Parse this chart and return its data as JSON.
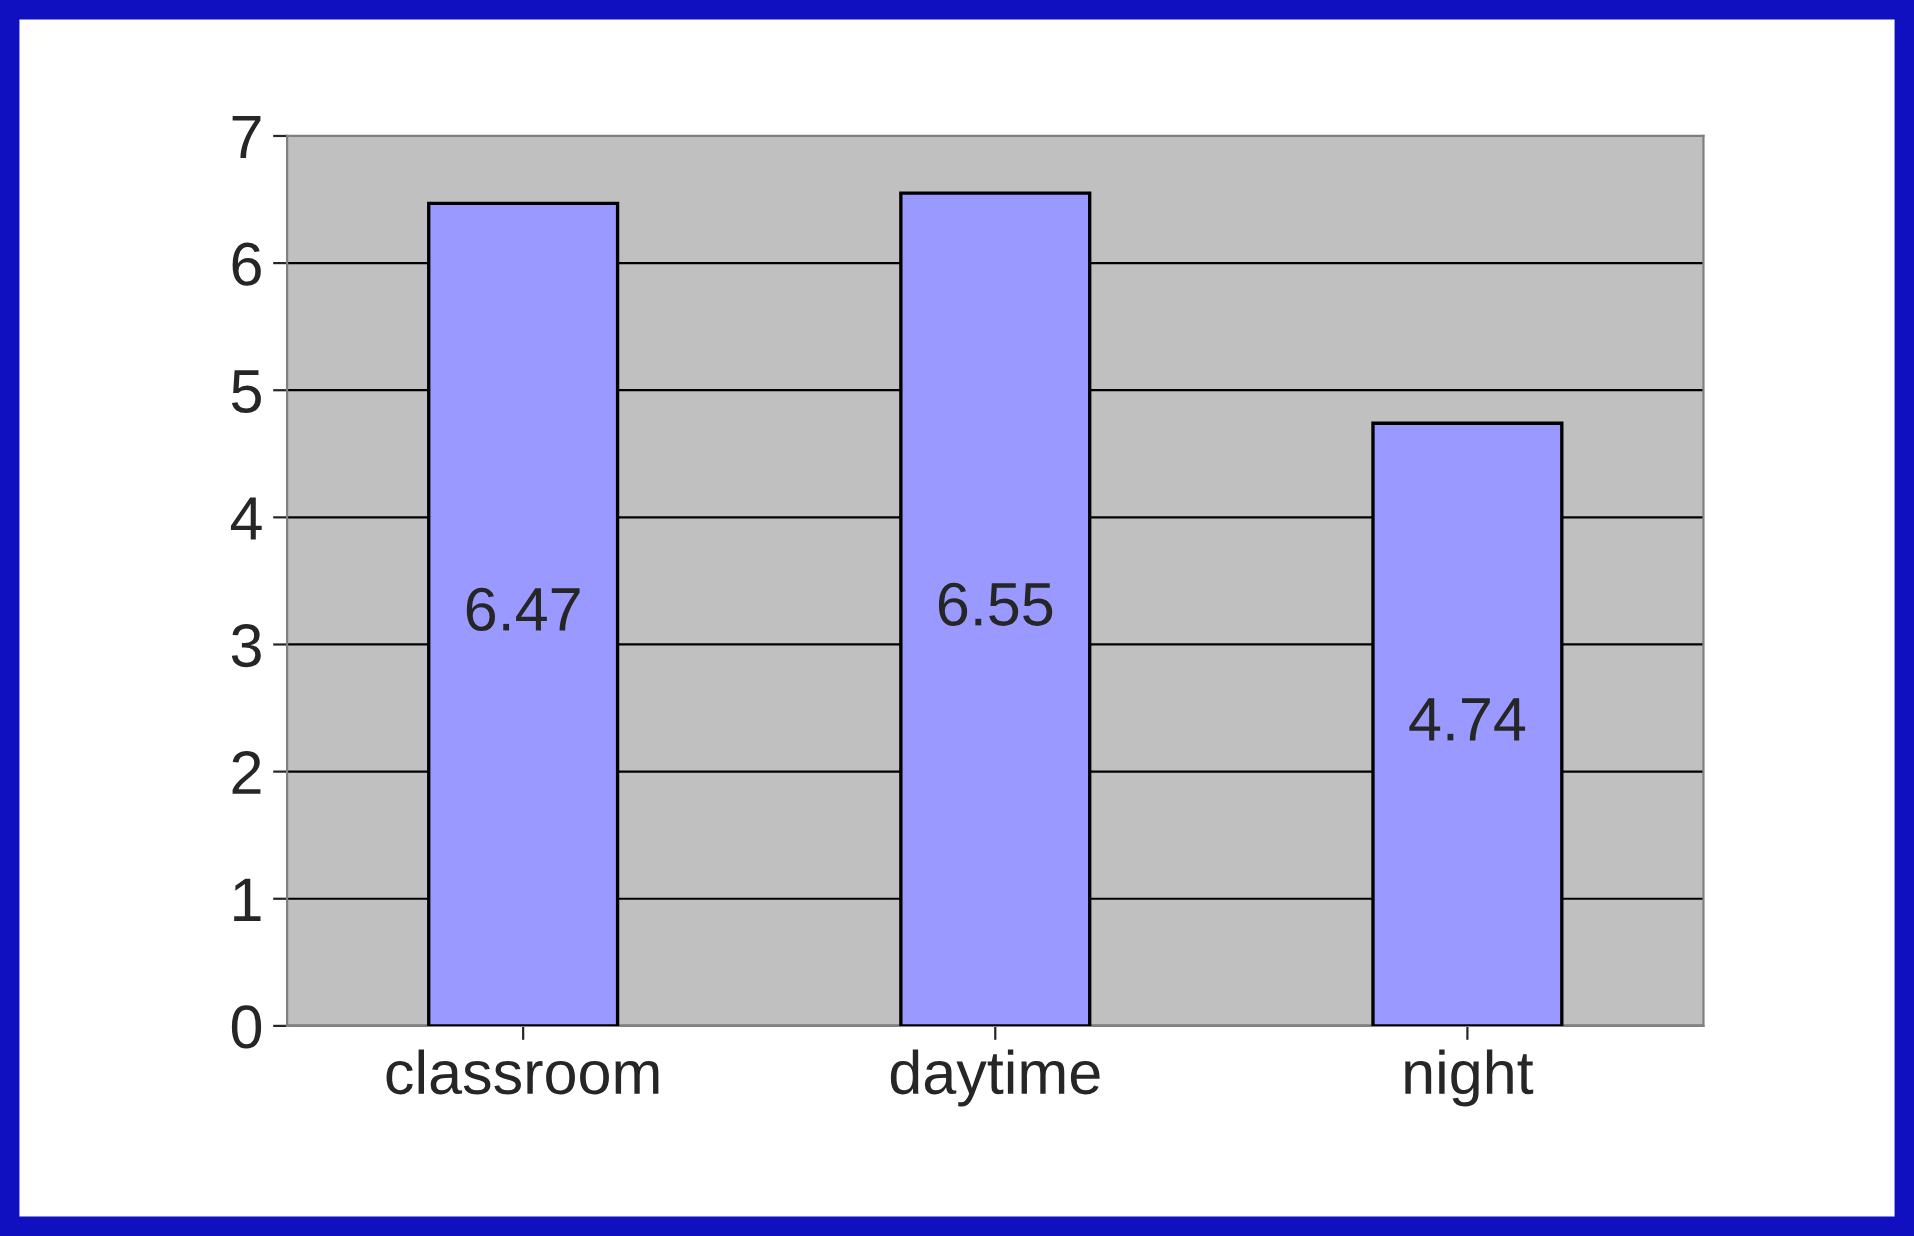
{
  "chart_data": {
    "type": "bar",
    "categories": [
      "classroom",
      "daytime",
      "night"
    ],
    "values": [
      6.47,
      6.55,
      4.74
    ],
    "color": "#9999ff",
    "ylim": [
      0,
      7
    ],
    "yticks": [
      0,
      1,
      2,
      3,
      4,
      5,
      6,
      7
    ],
    "grid": "y",
    "data_labels": true
  }
}
